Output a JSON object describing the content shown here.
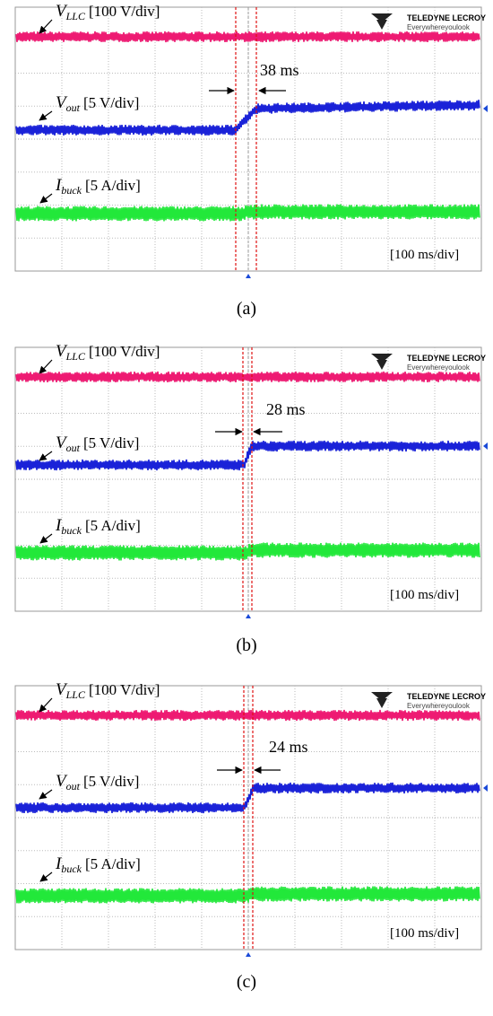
{
  "logo": {
    "brand": "TELEDYNE LECROY",
    "tagline": "Everywhereyoulook"
  },
  "panels": [
    {
      "label": "(a)",
      "duration": "38 ms",
      "timebase": "[100 ms/div]",
      "channels": [
        {
          "symbol": "V",
          "subscript": "LLC",
          "scale": "[100 V/div]"
        },
        {
          "symbol": "V",
          "subscript": "out",
          "scale": "[5 V/div]"
        },
        {
          "symbol": "I",
          "subscript": "buck",
          "scale": "[5 A/div]"
        }
      ]
    },
    {
      "label": "(b)",
      "duration": "28 ms",
      "timebase": "[100 ms/div]",
      "channels": [
        {
          "symbol": "V",
          "subscript": "LLC",
          "scale": "[100 V/div]"
        },
        {
          "symbol": "V",
          "subscript": "out",
          "scale": "[5 V/div]"
        },
        {
          "symbol": "I",
          "subscript": "buck",
          "scale": "[5 A/div]"
        }
      ]
    },
    {
      "label": "(c)",
      "duration": "24 ms",
      "timebase": "[100 ms/div]",
      "channels": [
        {
          "symbol": "V",
          "subscript": "LLC",
          "scale": "[100 V/div]"
        },
        {
          "symbol": "V",
          "subscript": "out",
          "scale": "[5 V/div]"
        },
        {
          "symbol": "I",
          "subscript": "buck",
          "scale": "[5 A/div]"
        }
      ]
    }
  ]
}
